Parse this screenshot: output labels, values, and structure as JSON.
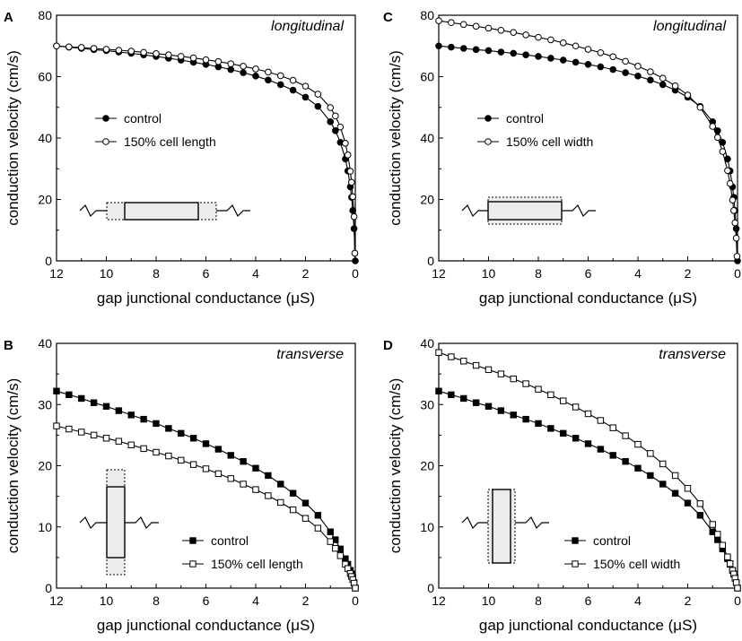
{
  "figure": {
    "description_free": true
  },
  "chart_data": [
    {
      "type": "scatter",
      "panel_letter": "A",
      "title": "longitudinal",
      "xlabel": "gap junctional conductance (μS)",
      "ylabel": "conduction velocity (cm/s)",
      "xlim": [
        12,
        0
      ],
      "ylim": [
        0,
        80
      ],
      "xticks": [
        12,
        10,
        8,
        6,
        4,
        2,
        0
      ],
      "yticks": [
        0,
        20,
        40,
        60,
        80
      ],
      "legend_position": "middle-left",
      "inset": "horizontal-cell-longer",
      "marker": "circle",
      "series": [
        {
          "name": "control",
          "fill": "#000000",
          "x": [
            12,
            11.5,
            11,
            10.5,
            10,
            9.5,
            9,
            8.5,
            8,
            7.5,
            7,
            6.5,
            6,
            5.5,
            5,
            4.5,
            4,
            3.5,
            3,
            2.5,
            2,
            1.5,
            1,
            0.8,
            0.6,
            0.4,
            0.3,
            0.2,
            0.15,
            0.1,
            0.05,
            0
          ],
          "y": [
            70,
            69.6,
            69.2,
            68.8,
            68.5,
            68.0,
            67.6,
            67.1,
            66.6,
            66.0,
            65.4,
            64.7,
            64.0,
            63.2,
            62.3,
            61.3,
            60.2,
            58.9,
            57.4,
            55.6,
            53.3,
            50.3,
            45.3,
            42.4,
            38.6,
            33.2,
            29.3,
            24.1,
            20.7,
            16.4,
            10.5,
            0
          ]
        },
        {
          "name": "150% cell length",
          "fill": "#ffffff",
          "x": [
            12,
            11.5,
            11,
            10.5,
            10,
            9.5,
            9,
            8.5,
            8,
            7.5,
            7,
            6.5,
            6,
            5.5,
            5,
            4.5,
            4,
            3.5,
            3,
            2.5,
            2,
            1.5,
            1,
            0.8,
            0.6,
            0.4,
            0.3,
            0.2,
            0.15,
            0.1,
            0.05,
            0.02
          ],
          "y": [
            70,
            69.7,
            69.5,
            69.2,
            68.9,
            68.6,
            68.3,
            67.9,
            67.5,
            67.1,
            66.6,
            66.1,
            65.5,
            64.9,
            64.2,
            63.4,
            62.5,
            61.5,
            60.3,
            58.8,
            56.9,
            54.3,
            49.9,
            47.2,
            43.6,
            38.3,
            34.5,
            29.2,
            25.6,
            20.9,
            14.4,
            2.5
          ]
        }
      ]
    },
    {
      "type": "scatter",
      "panel_letter": "B",
      "title": "transverse",
      "xlabel": "gap junctional conductance (μS)",
      "ylabel": "conduction velocity (cm/s)",
      "xlim": [
        12,
        0
      ],
      "ylim": [
        0,
        40
      ],
      "xticks": [
        12,
        10,
        8,
        6,
        4,
        2,
        0
      ],
      "yticks": [
        0,
        10,
        20,
        30,
        40
      ],
      "legend_position": "bottom-right",
      "inset": "vertical-cell-longer",
      "marker": "square",
      "series": [
        {
          "name": "control",
          "fill": "#000000",
          "x": [
            12,
            11.5,
            11,
            10.5,
            10,
            9.5,
            9,
            8.5,
            8,
            7.5,
            7,
            6.5,
            6,
            5.5,
            5,
            4.5,
            4,
            3.5,
            3,
            2.5,
            2,
            1.5,
            1,
            0.8,
            0.6,
            0.4,
            0.3,
            0.2,
            0.15,
            0.1,
            0.05,
            0
          ],
          "y": [
            32.2,
            31.6,
            31.0,
            30.3,
            29.7,
            29.0,
            28.3,
            27.6,
            26.9,
            26.1,
            25.3,
            24.5,
            23.6,
            22.7,
            21.7,
            20.7,
            19.6,
            18.4,
            17.0,
            15.5,
            13.9,
            11.9,
            9.2,
            7.9,
            6.4,
            4.8,
            3.9,
            2.9,
            2.3,
            1.7,
            0.9,
            0
          ]
        },
        {
          "name": "150% cell length",
          "fill": "#ffffff",
          "x": [
            12,
            11.5,
            11,
            10.5,
            10,
            9.5,
            9,
            8.5,
            8,
            7.5,
            7,
            6.5,
            6,
            5.5,
            5,
            4.5,
            4,
            3.5,
            3,
            2.5,
            2,
            1.5,
            1,
            0.8,
            0.6,
            0.4,
            0.3,
            0.2,
            0.15,
            0.1,
            0.05,
            0
          ],
          "y": [
            26.5,
            26.0,
            25.5,
            25.0,
            24.5,
            24.0,
            23.4,
            22.8,
            22.2,
            21.6,
            20.9,
            20.2,
            19.5,
            18.7,
            17.9,
            17.0,
            16.1,
            15.1,
            14.0,
            12.8,
            11.4,
            9.8,
            7.6,
            6.5,
            5.3,
            3.9,
            3.2,
            2.4,
            1.9,
            1.4,
            0.8,
            0
          ]
        }
      ]
    },
    {
      "type": "scatter",
      "panel_letter": "C",
      "title": "longitudinal",
      "xlabel": "gap junctional conductance (μS)",
      "ylabel": "conduction velocity (cm/s)",
      "xlim": [
        12,
        0
      ],
      "ylim": [
        0,
        80
      ],
      "xticks": [
        12,
        10,
        8,
        6,
        4,
        2,
        0
      ],
      "yticks": [
        0,
        20,
        40,
        60,
        80
      ],
      "legend_position": "middle-left",
      "inset": "horizontal-cell-wider",
      "marker": "circle",
      "series": [
        {
          "name": "control",
          "fill": "#000000",
          "x": [
            12,
            11.5,
            11,
            10.5,
            10,
            9.5,
            9,
            8.5,
            8,
            7.5,
            7,
            6.5,
            6,
            5.5,
            5,
            4.5,
            4,
            3.5,
            3,
            2.5,
            2,
            1.5,
            1,
            0.8,
            0.6,
            0.4,
            0.3,
            0.2,
            0.15,
            0.1,
            0.05,
            0
          ],
          "y": [
            70,
            69.6,
            69.2,
            68.8,
            68.5,
            68.0,
            67.6,
            67.1,
            66.6,
            66.0,
            65.4,
            64.7,
            64.0,
            63.2,
            62.3,
            61.3,
            60.2,
            58.9,
            57.4,
            55.6,
            53.3,
            50.3,
            45.3,
            42.4,
            38.6,
            33.2,
            29.3,
            24.1,
            20.7,
            16.4,
            10.5,
            0
          ]
        },
        {
          "name": "150% cell width",
          "fill": "#ffffff",
          "x": [
            12,
            11.5,
            11,
            10.5,
            10,
            9.5,
            9,
            8.5,
            8,
            7.5,
            7,
            6.5,
            6,
            5.5,
            5,
            4.5,
            4,
            3.5,
            3,
            2.5,
            2,
            1.5,
            1,
            0.8,
            0.6,
            0.4,
            0.3,
            0.2,
            0.15,
            0.1,
            0.05,
            0.02
          ],
          "y": [
            78.2,
            77.6,
            77.0,
            76.4,
            75.8,
            75.1,
            74.4,
            73.6,
            72.8,
            72.0,
            71.0,
            70.0,
            68.9,
            67.8,
            66.5,
            65.0,
            63.4,
            61.6,
            59.5,
            57.0,
            54.0,
            50.0,
            43.8,
            40.2,
            35.6,
            29.4,
            25.2,
            19.8,
            16.4,
            12.4,
            7.4,
            1.5
          ]
        }
      ]
    },
    {
      "type": "scatter",
      "panel_letter": "D",
      "title": "transverse",
      "xlabel": "gap junctional conductance (μS)",
      "ylabel": "conduction velocity (cm/s)",
      "xlim": [
        12,
        0
      ],
      "ylim": [
        0,
        40
      ],
      "xticks": [
        12,
        10,
        8,
        6,
        4,
        2,
        0
      ],
      "yticks": [
        0,
        10,
        20,
        30,
        40
      ],
      "legend_position": "bottom-right",
      "inset": "vertical-cell-wider",
      "marker": "square",
      "series": [
        {
          "name": "control",
          "fill": "#000000",
          "x": [
            12,
            11.5,
            11,
            10.5,
            10,
            9.5,
            9,
            8.5,
            8,
            7.5,
            7,
            6.5,
            6,
            5.5,
            5,
            4.5,
            4,
            3.5,
            3,
            2.5,
            2,
            1.5,
            1,
            0.8,
            0.6,
            0.4,
            0.3,
            0.2,
            0.15,
            0.1,
            0.05,
            0
          ],
          "y": [
            32.2,
            31.6,
            31.0,
            30.3,
            29.7,
            29.0,
            28.3,
            27.6,
            26.9,
            26.1,
            25.3,
            24.5,
            23.6,
            22.7,
            21.7,
            20.7,
            19.6,
            18.4,
            17.0,
            15.5,
            13.9,
            11.9,
            9.2,
            7.9,
            6.4,
            4.8,
            3.9,
            2.9,
            2.3,
            1.7,
            0.9,
            0
          ]
        },
        {
          "name": "150% cell width",
          "fill": "#ffffff",
          "x": [
            12,
            11.5,
            11,
            10.5,
            10,
            9.5,
            9,
            8.5,
            8,
            7.5,
            7,
            6.5,
            6,
            5.5,
            5,
            4.5,
            4,
            3.5,
            3,
            2.5,
            2,
            1.5,
            1,
            0.8,
            0.6,
            0.4,
            0.3,
            0.2,
            0.15,
            0.1,
            0.05,
            0
          ],
          "y": [
            38.5,
            37.8,
            37.1,
            36.4,
            35.7,
            35.0,
            34.2,
            33.4,
            32.5,
            31.6,
            30.6,
            29.6,
            28.5,
            27.4,
            26.2,
            24.9,
            23.5,
            22.0,
            20.3,
            18.4,
            16.3,
            13.8,
            10.4,
            8.8,
            7.0,
            5.1,
            4.0,
            2.9,
            2.3,
            1.6,
            0.9,
            0
          ]
        }
      ]
    }
  ]
}
